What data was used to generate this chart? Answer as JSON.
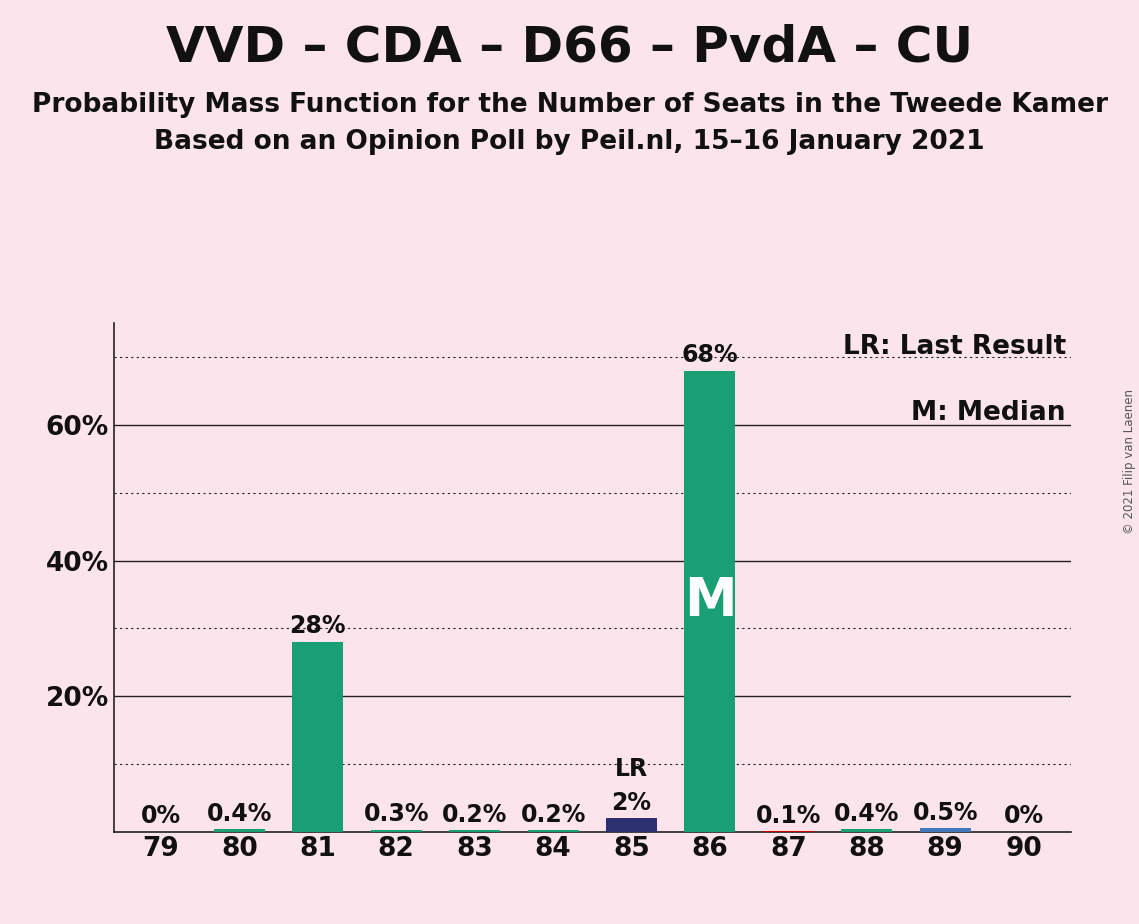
{
  "title": "VVD – CDA – D66 – PvdA – CU",
  "subtitle1": "Probability Mass Function for the Number of Seats in the Tweede Kamer",
  "subtitle2": "Based on an Opinion Poll by Peil.nl, 15–16 January 2021",
  "copyright": "© 2021 Filip van Laenen",
  "categories": [
    79,
    80,
    81,
    82,
    83,
    84,
    85,
    86,
    87,
    88,
    89,
    90
  ],
  "values": [
    0.0,
    0.4,
    28.0,
    0.3,
    0.2,
    0.2,
    2.0,
    68.0,
    0.1,
    0.4,
    0.5,
    0.0
  ],
  "labels": [
    "0%",
    "0.4%",
    "28%",
    "0.3%",
    "0.2%",
    "0.2%",
    "2%",
    "68%",
    "0.1%",
    "0.4%",
    "0.5%",
    "0%"
  ],
  "bar_colors": [
    "#1a9e74",
    "#1a9e74",
    "#1a9e74",
    "#1a9e74",
    "#1a9e74",
    "#1a9e74",
    "#2d3070",
    "#1a9e74",
    "#cc0000",
    "#1a9e74",
    "#4477bb",
    "#1a9e74"
  ],
  "median_bar": 86,
  "lr_bar": 85,
  "median_label": "M",
  "lr_label": "LR",
  "legend_lr": "LR: Last Result",
  "legend_m": "M: Median",
  "background_color": "#fce4ec",
  "bar_width": 0.65,
  "ylim": [
    0,
    75
  ],
  "ytick_solid": [
    20,
    40,
    60
  ],
  "ytick_dotted": [
    10,
    30,
    50,
    70
  ],
  "ytick_labels_pos": [
    20,
    40,
    60
  ],
  "ytick_labels_vals": [
    "20%",
    "40%",
    "60%"
  ],
  "title_fontsize": 36,
  "subtitle_fontsize": 19,
  "label_fontsize": 17,
  "tick_fontsize": 19,
  "legend_fontsize": 19,
  "median_label_fontsize": 38,
  "lr_label_fontsize": 17,
  "median_label_color": "#ffffff",
  "lr_label_color": "#111111"
}
